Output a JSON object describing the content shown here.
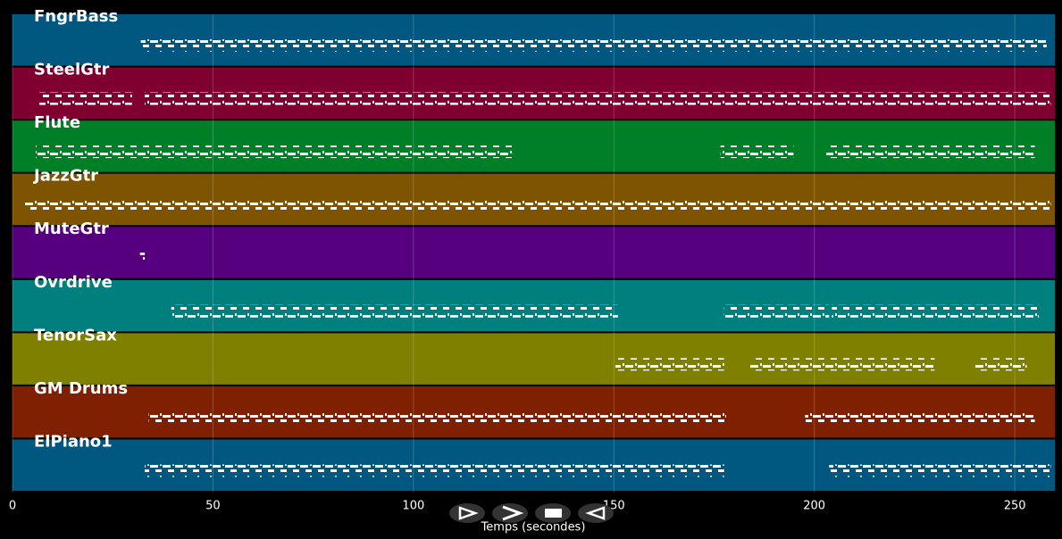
{
  "chart_data": {
    "type": "pianoroll",
    "xlabel": "Temps (secondes)",
    "xlim": [
      0,
      260
    ],
    "xticks": [
      0,
      50,
      100,
      150,
      200,
      250
    ],
    "grid": true,
    "series": [
      {
        "name": "FngrBass",
        "color": "#005780",
        "segments": [
          [
            32,
            258
          ]
        ]
      },
      {
        "name": "SteelGtr",
        "color": "#7f0030",
        "segments": [
          [
            6.7,
            29.8
          ],
          [
            33,
            259
          ]
        ]
      },
      {
        "name": "Flute",
        "color": "#007f26",
        "segments": [
          [
            5.8,
            124.8
          ],
          [
            176.6,
            194.8
          ],
          [
            203,
            255
          ]
        ]
      },
      {
        "name": "JazzGtr",
        "color": "#7f5400",
        "segments": [
          [
            3,
            259
          ]
        ]
      },
      {
        "name": "MuteGtr",
        "color": "#56007f",
        "segments": [
          [
            31.8,
            33
          ]
        ]
      },
      {
        "name": "Ovrdrive",
        "color": "#007f7f",
        "segments": [
          [
            39.6,
            151
          ],
          [
            177.5,
            203.7
          ],
          [
            204.4,
            256
          ]
        ]
      },
      {
        "name": "TenorSax",
        "color": "#7f7f00",
        "segments": [
          [
            150.4,
            177.5
          ],
          [
            184,
            230
          ],
          [
            240,
            253
          ]
        ]
      },
      {
        "name": "GM Drums",
        "color": "#7f2000",
        "segments": [
          [
            34,
            178
          ],
          [
            197.7,
            255
          ]
        ]
      },
      {
        "name": "ElPiano1",
        "color": "#005780",
        "segments": [
          [
            33,
            177.5
          ],
          [
            203.7,
            259
          ]
        ]
      }
    ]
  }
}
